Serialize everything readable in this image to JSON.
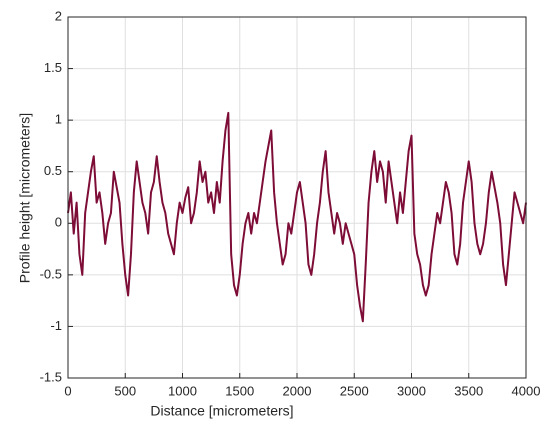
{
  "chart_data": {
    "type": "line",
    "xlabel": "Distance [micrometers]",
    "ylabel": "Profile height [micrometers]",
    "x": [
      0,
      25,
      50,
      75,
      100,
      125,
      150,
      175,
      200,
      225,
      250,
      275,
      300,
      325,
      350,
      375,
      400,
      425,
      450,
      475,
      500,
      525,
      550,
      575,
      600,
      625,
      650,
      675,
      700,
      725,
      750,
      775,
      800,
      825,
      850,
      875,
      900,
      925,
      950,
      975,
      1000,
      1025,
      1050,
      1075,
      1100,
      1125,
      1150,
      1175,
      1200,
      1225,
      1250,
      1275,
      1300,
      1325,
      1350,
      1375,
      1400,
      1425,
      1450,
      1475,
      1500,
      1525,
      1550,
      1575,
      1600,
      1625,
      1650,
      1675,
      1700,
      1725,
      1750,
      1775,
      1800,
      1825,
      1850,
      1875,
      1900,
      1925,
      1950,
      1975,
      2000,
      2025,
      2050,
      2075,
      2100,
      2125,
      2150,
      2175,
      2200,
      2225,
      2250,
      2275,
      2300,
      2325,
      2350,
      2375,
      2400,
      2425,
      2450,
      2475,
      2500,
      2525,
      2550,
      2575,
      2600,
      2625,
      2650,
      2675,
      2700,
      2725,
      2750,
      2775,
      2800,
      2825,
      2850,
      2875,
      2900,
      2925,
      2950,
      2975,
      3000,
      3025,
      3050,
      3075,
      3100,
      3125,
      3150,
      3175,
      3200,
      3225,
      3250,
      3275,
      3300,
      3325,
      3350,
      3375,
      3400,
      3425,
      3450,
      3475,
      3500,
      3525,
      3550,
      3575,
      3600,
      3625,
      3650,
      3675,
      3700,
      3725,
      3750,
      3775,
      3800,
      3825,
      3850,
      3875,
      3900,
      3925,
      3950,
      3975,
      4000
    ],
    "series": [
      {
        "color": "#7d0d36",
        "values": [
          0.1,
          0.3,
          -0.1,
          0.2,
          -0.3,
          -0.5,
          0.1,
          0.3,
          0.5,
          0.65,
          0.2,
          0.3,
          0.1,
          -0.2,
          0.0,
          0.1,
          0.5,
          0.35,
          0.2,
          -0.2,
          -0.5,
          -0.7,
          -0.3,
          0.3,
          0.6,
          0.4,
          0.2,
          0.1,
          -0.1,
          0.3,
          0.4,
          0.65,
          0.4,
          0.2,
          0.1,
          -0.1,
          -0.2,
          -0.3,
          0.0,
          0.2,
          0.1,
          0.25,
          0.35,
          0.0,
          0.1,
          0.3,
          0.6,
          0.4,
          0.5,
          0.2,
          0.3,
          0.1,
          0.4,
          0.2,
          0.6,
          0.9,
          1.07,
          -0.3,
          -0.6,
          -0.7,
          -0.5,
          -0.2,
          0.0,
          0.1,
          -0.1,
          0.1,
          0.0,
          0.2,
          0.4,
          0.6,
          0.75,
          0.9,
          0.3,
          0.0,
          -0.2,
          -0.4,
          -0.3,
          0.0,
          -0.1,
          0.1,
          0.3,
          0.4,
          0.2,
          0.0,
          -0.4,
          -0.5,
          -0.3,
          0.0,
          0.2,
          0.5,
          0.7,
          0.3,
          0.1,
          -0.1,
          0.1,
          0.0,
          -0.2,
          0.0,
          -0.1,
          -0.2,
          -0.3,
          -0.6,
          -0.8,
          -0.95,
          -0.4,
          0.2,
          0.5,
          0.7,
          0.4,
          0.6,
          0.5,
          0.2,
          0.6,
          0.4,
          0.2,
          0.0,
          0.3,
          0.1,
          0.4,
          0.7,
          0.85,
          -0.1,
          -0.3,
          -0.4,
          -0.6,
          -0.7,
          -0.6,
          -0.3,
          -0.1,
          0.1,
          0.0,
          0.2,
          0.4,
          0.3,
          0.1,
          -0.3,
          -0.4,
          -0.2,
          0.2,
          0.4,
          0.6,
          0.4,
          0.0,
          -0.2,
          -0.3,
          -0.2,
          0.0,
          0.3,
          0.5,
          0.35,
          0.2,
          0.0,
          -0.4,
          -0.6,
          -0.3,
          0.0,
          0.3,
          0.2,
          0.1,
          0.0,
          0.2
        ]
      }
    ],
    "xlim": [
      0,
      4000
    ],
    "xticks": [
      0,
      500,
      1000,
      1500,
      2000,
      2500,
      3000,
      3500,
      4000
    ],
    "ylim": [
      -1.5,
      2
    ],
    "yticks": [
      -1.5,
      -1,
      -0.5,
      0,
      0.5,
      1,
      1.5,
      2
    ],
    "grid": true
  }
}
